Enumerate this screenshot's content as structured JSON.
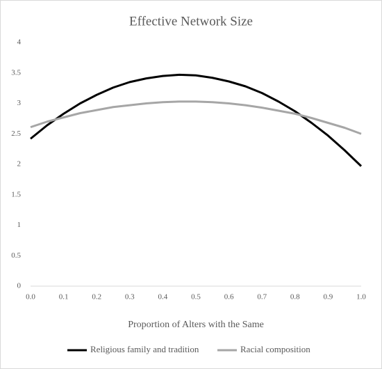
{
  "chart_data": {
    "type": "line",
    "title": "Effective Network Size",
    "x_label": "Proportion of Alters with the Same",
    "x": [
      0,
      0.05,
      0.1,
      0.15,
      0.2,
      0.25,
      0.3,
      0.35,
      0.4,
      0.45,
      0.5,
      0.55,
      0.6,
      0.65,
      0.7,
      0.75,
      0.8,
      0.85,
      0.9,
      0.95,
      1
    ],
    "series": [
      {
        "name": "Religious family and tradition",
        "color": "#000000",
        "values": [
          2.42,
          2.64,
          2.83,
          3.0,
          3.14,
          3.26,
          3.35,
          3.41,
          3.45,
          3.47,
          3.46,
          3.42,
          3.36,
          3.28,
          3.17,
          3.03,
          2.87,
          2.68,
          2.47,
          2.23,
          1.97
        ]
      },
      {
        "name": "Racial composition",
        "color": "#a6a6a6",
        "values": [
          2.61,
          2.7,
          2.77,
          2.84,
          2.89,
          2.94,
          2.97,
          3.0,
          3.02,
          3.03,
          3.03,
          3.02,
          3.0,
          2.97,
          2.93,
          2.88,
          2.83,
          2.76,
          2.68,
          2.6,
          2.5
        ]
      }
    ],
    "xlim": [
      0,
      1
    ],
    "xticks": [
      {
        "value": 0,
        "label": "0.0"
      },
      0.1,
      0.2,
      0.3,
      0.4,
      0.5,
      0.6,
      0.7,
      0.8,
      0.9,
      {
        "value": 1,
        "label": "1.0"
      }
    ],
    "ylim": [
      0,
      4
    ],
    "yticks": [
      0,
      0.5,
      1,
      1.5,
      2,
      2.5,
      3,
      3.5,
      4
    ],
    "grid": false,
    "legend": "bottom"
  }
}
